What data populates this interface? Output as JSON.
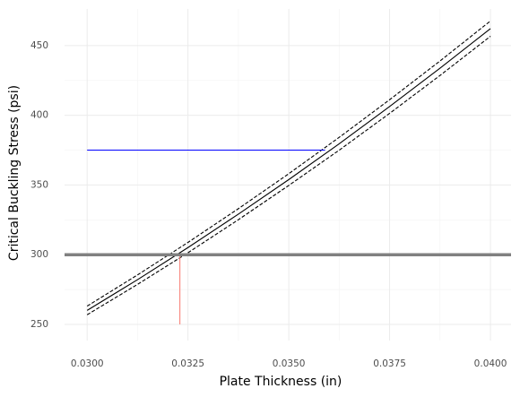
{
  "chart_data": {
    "type": "line",
    "x_label": "Plate Thickness (in)",
    "y_label": "Critical Buckling Stress (psi)",
    "xlim": [
      0.02944,
      0.04051
    ],
    "ylim": [
      238.4,
      476.3
    ],
    "xticks": [
      {
        "value": 0.03,
        "label": "0.0300"
      },
      {
        "value": 0.0325,
        "label": "0.0325"
      },
      {
        "value": 0.035,
        "label": "0.0350"
      },
      {
        "value": 0.0375,
        "label": "0.0375"
      },
      {
        "value": 0.04,
        "label": "0.0400"
      }
    ],
    "yticks": [
      250,
      300,
      350,
      400,
      450
    ],
    "grid": true,
    "x": [
      0.03,
      0.03125,
      0.0325,
      0.03375,
      0.035,
      0.03625,
      0.0375,
      0.03875,
      0.04
    ],
    "series": [
      {
        "color": "#000000",
        "dash": false,
        "values": [
          260.0,
          282.1,
          305.1,
          329.1,
          353.9,
          379.6,
          406.3,
          433.8,
          462.2
        ]
      },
      {
        "color": "#000000",
        "dash": true,
        "values": [
          263.1,
          285.5,
          308.8,
          333.0,
          358.1,
          384.2,
          411.2,
          439.0,
          467.7
        ]
      },
      {
        "color": "#000000",
        "dash": true,
        "values": [
          256.9,
          278.7,
          301.4,
          325.1,
          349.7,
          375.0,
          401.4,
          428.6,
          456.7
        ]
      }
    ],
    "segments": [
      {
        "color": "#0000ff",
        "width": 1,
        "x": [
          0.03,
          0.0359
        ],
        "y": [
          375,
          375
        ]
      },
      {
        "color": "#f8766d",
        "width": 1,
        "x": [
          0.0323,
          0.0323
        ],
        "y": [
          250,
          300
        ]
      }
    ],
    "hlines": [
      {
        "color": "#808080",
        "width": 3.5,
        "y": 300
      }
    ]
  }
}
